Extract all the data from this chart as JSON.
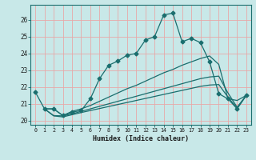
{
  "xlabel": "Humidex (Indice chaleur)",
  "bg_color": "#c8e8e8",
  "grid_color": "#e8a8a8",
  "line_color": "#1a6e6e",
  "xlim": [
    -0.5,
    23.5
  ],
  "ylim": [
    19.75,
    26.9
  ],
  "xticks": [
    0,
    1,
    2,
    3,
    4,
    5,
    6,
    7,
    8,
    9,
    10,
    11,
    12,
    13,
    14,
    15,
    16,
    17,
    18,
    19,
    20,
    21,
    22,
    23
  ],
  "yticks": [
    20,
    21,
    22,
    23,
    24,
    25,
    26
  ],
  "line1_x": [
    0,
    1,
    2,
    3,
    4,
    5,
    6,
    7,
    8,
    9,
    10,
    11,
    12,
    13,
    14,
    15,
    16,
    17,
    18,
    19,
    20,
    21,
    22,
    23
  ],
  "line1_y": [
    21.7,
    20.7,
    20.7,
    20.3,
    20.5,
    20.6,
    21.3,
    22.5,
    23.3,
    23.55,
    23.9,
    24.0,
    24.8,
    25.0,
    26.3,
    26.4,
    24.7,
    24.9,
    24.65,
    23.5,
    21.6,
    21.3,
    20.7,
    21.5
  ],
  "line2_x": [
    1,
    2,
    3,
    4,
    5,
    6,
    7,
    8,
    9,
    10,
    11,
    12,
    13,
    14,
    15,
    16,
    17,
    18,
    19,
    20,
    21,
    22,
    23
  ],
  "line2_y": [
    20.7,
    20.7,
    20.3,
    20.55,
    20.7,
    20.9,
    21.15,
    21.4,
    21.65,
    21.9,
    22.1,
    22.35,
    22.6,
    22.85,
    23.05,
    23.3,
    23.5,
    23.7,
    23.85,
    23.35,
    21.3,
    21.2,
    21.5
  ],
  "line3_x": [
    1,
    2,
    3,
    4,
    5,
    6,
    7,
    8,
    9,
    10,
    11,
    12,
    13,
    14,
    15,
    16,
    17,
    18,
    19,
    20,
    21,
    22,
    23
  ],
  "line3_y": [
    20.7,
    20.3,
    20.28,
    20.4,
    20.55,
    20.7,
    20.85,
    21.0,
    21.15,
    21.3,
    21.45,
    21.6,
    21.75,
    21.9,
    22.05,
    22.2,
    22.35,
    22.5,
    22.6,
    22.65,
    21.65,
    20.8,
    21.5
  ],
  "line4_x": [
    1,
    2,
    3,
    4,
    5,
    6,
    7,
    8,
    9,
    10,
    11,
    12,
    13,
    14,
    15,
    16,
    17,
    18,
    19,
    20,
    21,
    22,
    23
  ],
  "line4_y": [
    20.7,
    20.28,
    20.22,
    20.35,
    20.48,
    20.6,
    20.72,
    20.84,
    20.96,
    21.08,
    21.2,
    21.32,
    21.44,
    21.56,
    21.68,
    21.8,
    21.92,
    22.04,
    22.12,
    22.15,
    21.4,
    20.75,
    21.5
  ]
}
